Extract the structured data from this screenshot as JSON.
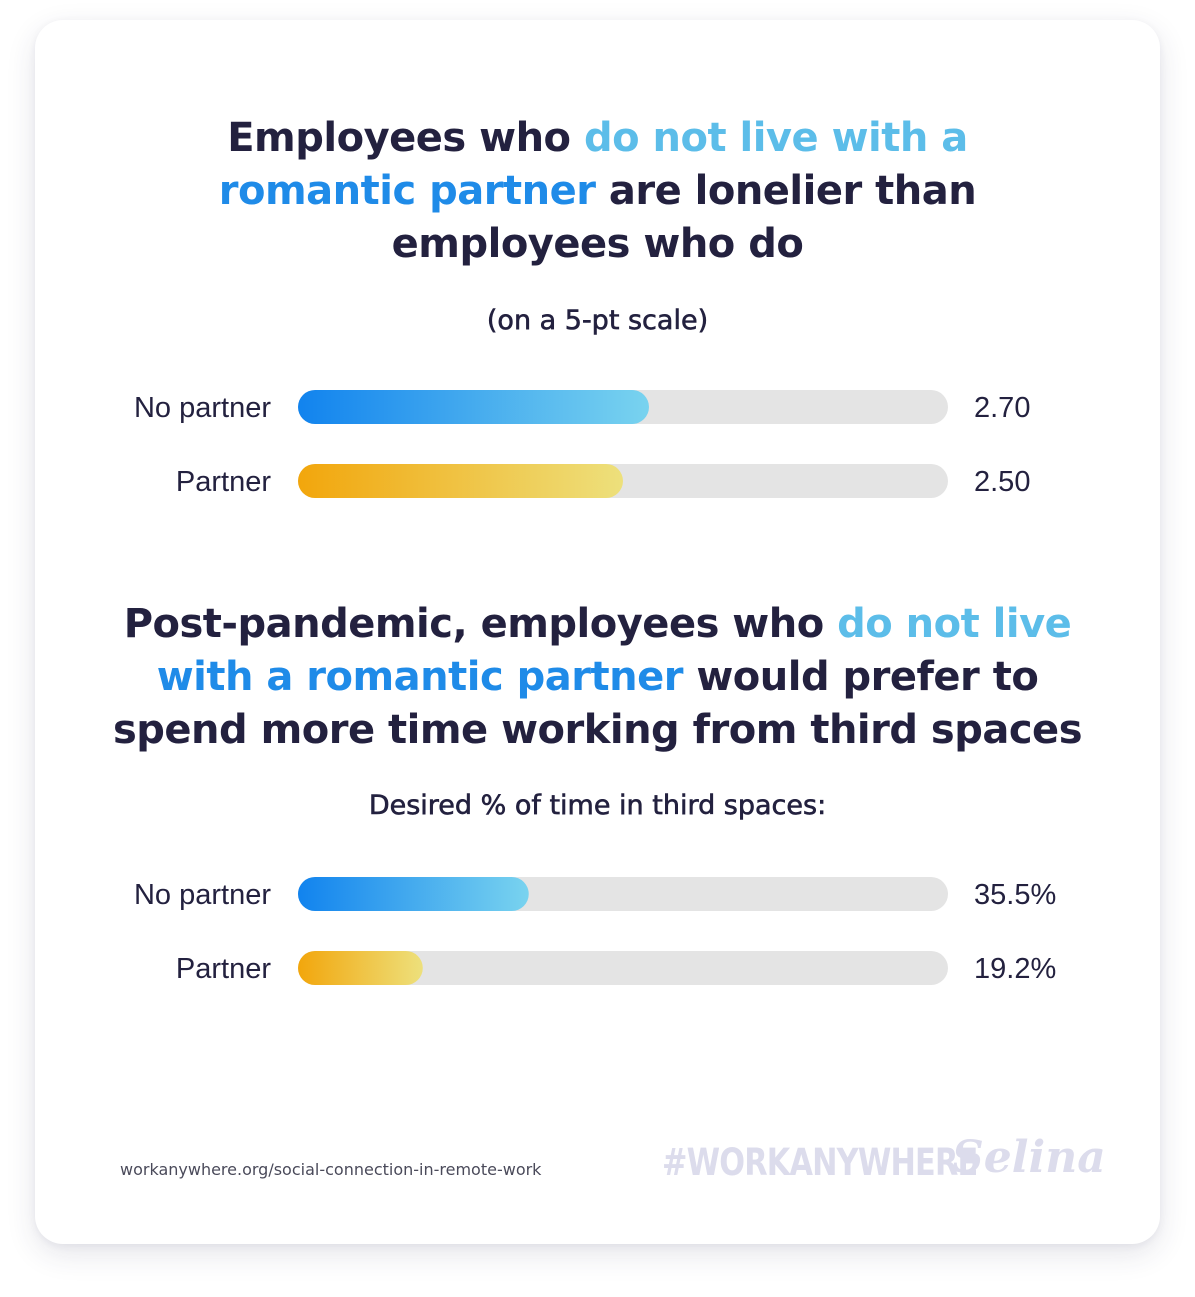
{
  "title1": {
    "line1_a": "Employees who ",
    "line1_b": "do not live with a",
    "line2_a": "romantic partner",
    "line2_b": " are lonelier than",
    "line3": "employees who do"
  },
  "subtitle1": "(on a 5-pt scale)",
  "title2": {
    "line1_a": "Post-pandemic, employees who ",
    "line1_b": "do not live",
    "line2_a": "with a romantic partner",
    "line2_b": " would prefer to",
    "line3": "spend more time working from third spaces"
  },
  "subtitle2": "Desired % of time in third spaces:",
  "colors": {
    "blue_start": "#1183ee",
    "blue_end": "#79d3ef",
    "yellow_start": "#f2a60c",
    "yellow_end": "#ede07c",
    "track": "#e4e4e4",
    "text_dark": "#23213f"
  },
  "chart_data": [
    {
      "type": "bar",
      "orientation": "horizontal",
      "categories": [
        "No partner",
        "Partner"
      ],
      "values": [
        2.7,
        2.5
      ],
      "value_labels": [
        "2.70",
        "2.50"
      ],
      "max": 5,
      "series_colors": [
        "blue",
        "yellow"
      ]
    },
    {
      "type": "bar",
      "orientation": "horizontal",
      "categories": [
        "No partner",
        "Partner"
      ],
      "values": [
        35.5,
        19.2
      ],
      "value_labels": [
        "35.5%",
        "19.2%"
      ],
      "max": 100,
      "series_colors": [
        "blue",
        "yellow"
      ]
    }
  ],
  "footer": {
    "url": "workanywhere.org/social-connection-in-remote-work",
    "hashtag": "#WORKANYWHERE",
    "brand": "Selina"
  }
}
